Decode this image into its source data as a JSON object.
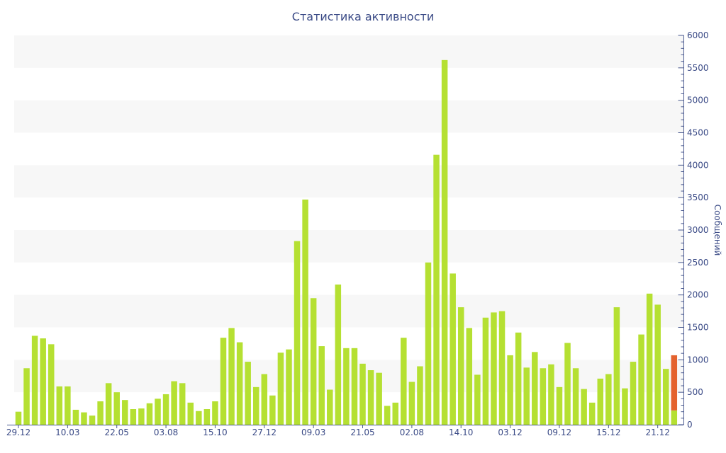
{
  "colors": {
    "bar": "#b5e032",
    "bar_highlight": "#e4622e",
    "band": "#f7f7f7",
    "axis": "#4a5a90",
    "text": "#3a4a86"
  },
  "chart_data": {
    "type": "bar",
    "title": "Статистика активности",
    "xlabel": "",
    "ylabel": "Сообщений",
    "y_axis_side": "right",
    "ylim": [
      0,
      6000
    ],
    "yticks": [
      0,
      500,
      1000,
      1500,
      2000,
      2500,
      3000,
      3500,
      4000,
      4500,
      5000,
      5500,
      6000
    ],
    "xtick_labels": [
      "29.12",
      "10.03",
      "22.05",
      "03.08",
      "15.10",
      "27.12",
      "09.03",
      "21.05",
      "02.08",
      "14.10",
      "03.12",
      "09.12",
      "15.12",
      "21.12"
    ],
    "grid": "alternating horizontal bands",
    "values": [
      200,
      870,
      1370,
      1330,
      1240,
      590,
      590,
      230,
      190,
      140,
      360,
      640,
      500,
      380,
      240,
      250,
      330,
      400,
      470,
      670,
      640,
      340,
      210,
      240,
      360,
      1340,
      1490,
      1270,
      970,
      580,
      780,
      450,
      1110,
      1160,
      2830,
      3470,
      1950,
      1210,
      540,
      2160,
      1180,
      1180,
      940,
      840,
      800,
      290,
      340,
      1340,
      660,
      900,
      2500,
      4160,
      5620,
      2330,
      1810,
      1490,
      770,
      1650,
      1730,
      1750,
      1070,
      1420,
      880,
      1120,
      870,
      930,
      580,
      1260,
      870,
      550,
      340,
      710,
      780,
      1810,
      560,
      970,
      1390,
      2020,
      1850,
      860,
      1070
    ],
    "last_bar_split": {
      "green": 220,
      "orange": 850
    }
  }
}
